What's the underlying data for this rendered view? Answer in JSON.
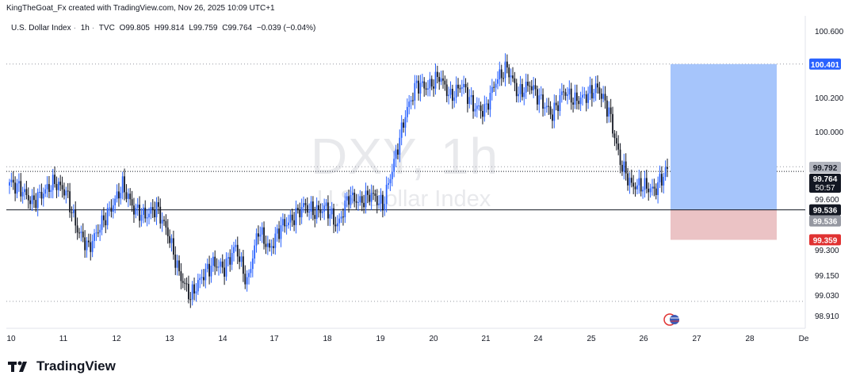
{
  "credit": "KingTheGoat_Fx created with TradingView.com, Nov 26, 2025 10:09 UTC+1",
  "legend": {
    "symbol": "U.S. Dollar Index",
    "interval": "1h",
    "source": "TVC",
    "open": "O99.805",
    "high": "H99.814",
    "low": "L99.759",
    "close": "C99.764",
    "change": "−0.039 (−0.04%)"
  },
  "watermark": {
    "ticker": "DXY, 1h",
    "name": "U.S. Dollar Index"
  },
  "brand": "TradingView",
  "colors": {
    "up": "#2962ff",
    "down": "#131722",
    "target_zone": "#a6c5fb",
    "stop_zone": "#ebc3c5",
    "target_label": "#2962ff",
    "stop_label": "#e03232"
  },
  "chart_data": {
    "type": "candlestick",
    "ylim": [
      98.85,
      100.68
    ],
    "price_ticks": [
      "100.600",
      "100.200",
      "100.000",
      "99.600",
      "99.300",
      "99.150",
      "99.030",
      "98.910"
    ],
    "price_tick_values": [
      100.6,
      100.2,
      100.0,
      99.6,
      99.3,
      99.15,
      99.03,
      98.91
    ],
    "x_labels": [
      "10",
      "11",
      "12",
      "13",
      "14",
      "17",
      "18",
      "19",
      "20",
      "21",
      "24",
      "25",
      "26",
      "27",
      "28",
      "De"
    ],
    "labels": {
      "target": "100.401",
      "current_high": "99.792",
      "last_price": "99.764",
      "countdown": "50:57",
      "entry": "99.536",
      "entry_dup": "99.536",
      "stop": "99.359"
    },
    "levels": {
      "target": 100.401,
      "entry": 99.536,
      "stop": 99.359,
      "current_high": 99.792,
      "last_price": 99.764,
      "dotted_top": 100.401,
      "dotted_bottom": 99.0
    },
    "anchors": [
      [
        0,
        99.7
      ],
      [
        6,
        99.66
      ],
      [
        12,
        99.58
      ],
      [
        18,
        99.64
      ],
      [
        24,
        99.7
      ],
      [
        30,
        99.64
      ],
      [
        36,
        99.42
      ],
      [
        42,
        99.31
      ],
      [
        48,
        99.44
      ],
      [
        54,
        99.55
      ],
      [
        60,
        99.68
      ],
      [
        66,
        99.54
      ],
      [
        72,
        99.5
      ],
      [
        78,
        99.55
      ],
      [
        84,
        99.4
      ],
      [
        90,
        99.16
      ],
      [
        96,
        99.02
      ],
      [
        102,
        99.14
      ],
      [
        108,
        99.22
      ],
      [
        114,
        99.19
      ],
      [
        120,
        99.32
      ],
      [
        126,
        99.1
      ],
      [
        132,
        99.42
      ],
      [
        138,
        99.3
      ],
      [
        144,
        99.44
      ],
      [
        150,
        99.48
      ],
      [
        156,
        99.56
      ],
      [
        162,
        99.52
      ],
      [
        168,
        99.55
      ],
      [
        174,
        99.44
      ],
      [
        180,
        99.62
      ],
      [
        186,
        99.58
      ],
      [
        192,
        99.63
      ],
      [
        198,
        99.56
      ],
      [
        204,
        99.82
      ],
      [
        210,
        100.1
      ],
      [
        216,
        100.28
      ],
      [
        222,
        100.26
      ],
      [
        228,
        100.33
      ],
      [
        234,
        100.2
      ],
      [
        240,
        100.28
      ],
      [
        246,
        100.15
      ],
      [
        252,
        100.12
      ],
      [
        258,
        100.3
      ],
      [
        264,
        100.38
      ],
      [
        270,
        100.22
      ],
      [
        276,
        100.28
      ],
      [
        282,
        100.18
      ],
      [
        288,
        100.1
      ],
      [
        294,
        100.24
      ],
      [
        300,
        100.18
      ],
      [
        306,
        100.21
      ],
      [
        312,
        100.26
      ],
      [
        318,
        100.12
      ],
      [
        324,
        99.82
      ],
      [
        330,
        99.68
      ],
      [
        336,
        99.68
      ],
      [
        342,
        99.65
      ],
      [
        348,
        99.76
      ]
    ]
  }
}
